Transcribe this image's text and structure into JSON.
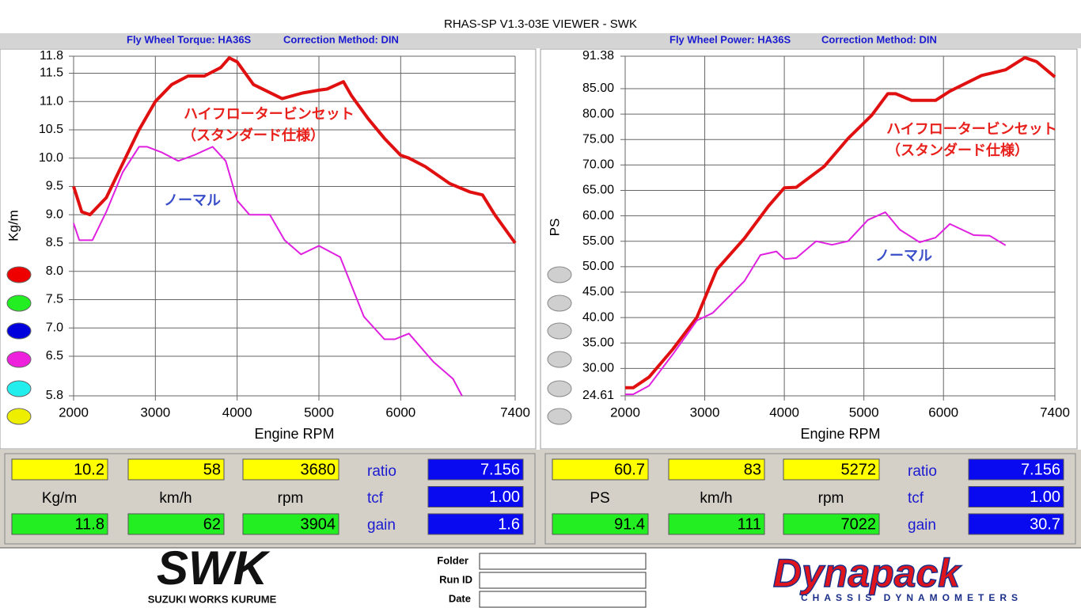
{
  "window": {
    "title": "RHAS-SP V1.3-03E VIEWER - SWK"
  },
  "chart_data": [
    {
      "type": "line",
      "title": "Fly Wheel Torque: HA36S",
      "subtitle": "Correction Method: DIN",
      "x_label": "Engine RPM",
      "y_label": "Kg/m",
      "grid": true,
      "xlim": [
        2000,
        7400
      ],
      "xticks": [
        2000,
        3000,
        4000,
        5000,
        6000,
        7400
      ],
      "ylim": [
        5.8,
        11.8
      ],
      "yticks": [
        11.8,
        11.5,
        {
          "value": 11,
          "label": "11.0"
        },
        10.5,
        {
          "value": 10,
          "label": "10.0"
        },
        9.5,
        {
          "value": 9,
          "label": "9.0"
        },
        8.5,
        {
          "value": 8,
          "label": "8.0"
        },
        7.5,
        {
          "value": 7,
          "label": "7.0"
        },
        6.5,
        5.8
      ],
      "annotations": [
        {
          "text": "ハイフロータービンセット",
          "color": "#e8201c"
        },
        {
          "text": "（スタンダード仕様）",
          "color": "#e8201c"
        },
        {
          "text": "ノーマル",
          "color": "#3a4ec8"
        }
      ],
      "series": [
        {
          "color": "#e01010",
          "width": 4,
          "x": [
            2000,
            2100,
            2200,
            2400,
            2600,
            2800,
            3000,
            3200,
            3400,
            3600,
            3800,
            3904,
            4000,
            4200,
            4550,
            4800,
            5000,
            5100,
            5300,
            5400,
            5600,
            5800,
            6000,
            6100,
            6300,
            6600,
            6850,
            7000,
            7150,
            7400
          ],
          "values": [
            9.5,
            9.05,
            9.0,
            9.3,
            9.9,
            10.5,
            11.0,
            11.3,
            11.45,
            11.45,
            11.6,
            11.77,
            11.7,
            11.3,
            11.05,
            11.15,
            11.2,
            11.22,
            11.35,
            11.1,
            10.7,
            10.35,
            10.05,
            10.0,
            9.85,
            9.55,
            9.4,
            9.35,
            9.0,
            8.5
          ]
        },
        {
          "color": "#e020e0",
          "width": 2,
          "x": [
            2000,
            2070,
            2230,
            2400,
            2600,
            2800,
            2900,
            3080,
            3280,
            3470,
            3700,
            3860,
            4000,
            4150,
            4400,
            4580,
            4780,
            5000,
            5260,
            5550,
            5800,
            5930,
            6100,
            6400,
            6640,
            6750
          ],
          "values": [
            8.85,
            8.55,
            8.55,
            9.05,
            9.75,
            10.2,
            10.2,
            10.1,
            9.95,
            10.05,
            10.2,
            9.95,
            9.25,
            9.0,
            9.0,
            8.55,
            8.3,
            8.45,
            8.25,
            7.2,
            6.8,
            6.8,
            6.9,
            6.4,
            6.1,
            5.8
          ]
        }
      ]
    },
    {
      "type": "line",
      "title": "Fly Wheel Power: HA36S",
      "subtitle": "Correction Method: DIN",
      "x_label": "Engine RPM",
      "y_label": "PS",
      "grid": true,
      "xlim": [
        2000,
        7400
      ],
      "xticks": [
        2000,
        3000,
        4000,
        5000,
        6000,
        7400
      ],
      "ylim": [
        24.61,
        91.38
      ],
      "yticks": [
        91.38,
        {
          "value": 85,
          "label": "85.00"
        },
        {
          "value": 80,
          "label": "80.00"
        },
        {
          "value": 75,
          "label": "75.00"
        },
        {
          "value": 70,
          "label": "70.00"
        },
        {
          "value": 65,
          "label": "65.00"
        },
        {
          "value": 60,
          "label": "60.00"
        },
        {
          "value": 55,
          "label": "55.00"
        },
        {
          "value": 50,
          "label": "50.00"
        },
        {
          "value": 45,
          "label": "45.00"
        },
        {
          "value": 40,
          "label": "40.00"
        },
        {
          "value": 35,
          "label": "35.00"
        },
        {
          "value": 30,
          "label": "30.00"
        },
        24.61
      ],
      "annotations": [
        {
          "text": "ハイフロータービンセット",
          "color": "#e8201c"
        },
        {
          "text": "（スタンダード仕様）",
          "color": "#e8201c"
        },
        {
          "text": "ノーマル",
          "color": "#3a4ec8"
        }
      ],
      "series": [
        {
          "color": "#e01010",
          "width": 4,
          "x": [
            2000,
            2100,
            2300,
            2600,
            2900,
            3150,
            3500,
            3800,
            4000,
            4150,
            4500,
            4800,
            5100,
            5300,
            5400,
            5600,
            5900,
            6080,
            6480,
            6780,
            7022,
            7170,
            7400
          ],
          "values": [
            26.2,
            26.2,
            28.3,
            33.8,
            40.0,
            49.4,
            55.6,
            61.9,
            65.5,
            65.6,
            69.7,
            75.2,
            79.8,
            84.0,
            84.0,
            82.7,
            82.7,
            84.5,
            87.6,
            88.7,
            91.1,
            90.3,
            87.3
          ]
        },
        {
          "color": "#e020e0",
          "width": 2,
          "x": [
            2000,
            2100,
            2300,
            2600,
            2900,
            3100,
            3200,
            3500,
            3700,
            3900,
            4000,
            4150,
            4400,
            4600,
            4800,
            5050,
            5270,
            5450,
            5700,
            5900,
            6080,
            6380,
            6580,
            6780
          ],
          "values": [
            24.9,
            24.9,
            26.6,
            32.8,
            39.4,
            40.9,
            42.5,
            47.2,
            52.3,
            53.0,
            51.5,
            51.7,
            55.0,
            54.3,
            55.0,
            59.2,
            60.7,
            57.3,
            54.8,
            55.7,
            58.4,
            56.2,
            56.1,
            54.2
          ]
        }
      ]
    }
  ],
  "readouts": [
    {
      "current": [
        "10.2",
        "58",
        "3680"
      ],
      "units": [
        "Kg/m",
        "km/h",
        "rpm"
      ],
      "max": [
        "11.8",
        "62",
        "3904"
      ],
      "param_labels": [
        "ratio",
        "tcf",
        "gain"
      ],
      "param_values": [
        "7.156",
        "1.00",
        "1.6"
      ]
    },
    {
      "current": [
        "60.7",
        "83",
        "5272"
      ],
      "units": [
        "PS",
        "km/h",
        "rpm"
      ],
      "max": [
        "91.4",
        "111",
        "7022"
      ],
      "param_labels": [
        "ratio",
        "tcf",
        "gain"
      ],
      "param_values": [
        "7.156",
        "1.00",
        "30.7"
      ]
    }
  ],
  "footer": {
    "logo": "SWK",
    "logo_caption": "SUZUKI WORKS KURUME",
    "fields": [
      "Folder",
      "Run ID",
      "Date"
    ],
    "brand": "Dynapack",
    "brand_caption": "CHASSIS DYNAMOMETERS"
  }
}
